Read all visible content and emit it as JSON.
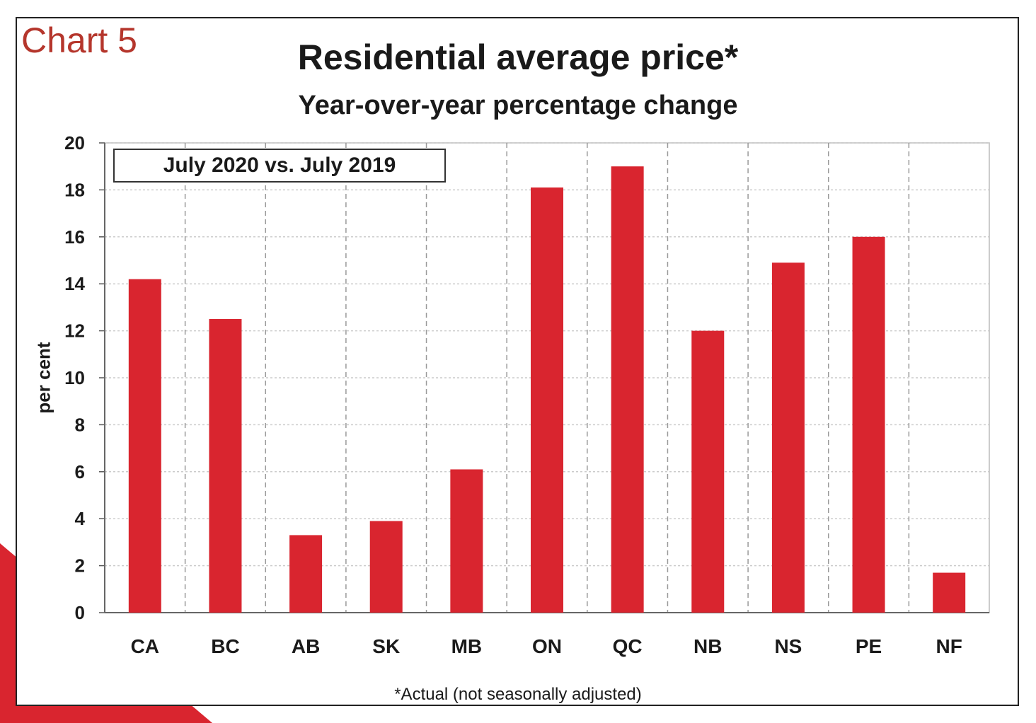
{
  "chart_label": "Chart 5",
  "accent_color": "#d9252f",
  "chart_data": {
    "type": "bar",
    "title": "Residential average price*",
    "subtitle": "Year-over-year percentage change",
    "legend_box": "July 2020 vs. July 2019",
    "ylabel": "per cent",
    "xlabel": "",
    "ylim": [
      0,
      20
    ],
    "yticks": [
      0,
      2,
      4,
      6,
      8,
      10,
      12,
      14,
      16,
      18,
      20
    ],
    "categories": [
      "CA",
      "BC",
      "AB",
      "SK",
      "MB",
      "ON",
      "QC",
      "NB",
      "NS",
      "PE",
      "NF"
    ],
    "values": [
      14.2,
      12.5,
      3.3,
      3.9,
      6.1,
      18.1,
      19.0,
      12.0,
      14.9,
      16.0,
      1.7
    ],
    "bar_color": "#d9252f",
    "grid": true,
    "footnote": "*Actual (not seasonally adjusted)"
  }
}
